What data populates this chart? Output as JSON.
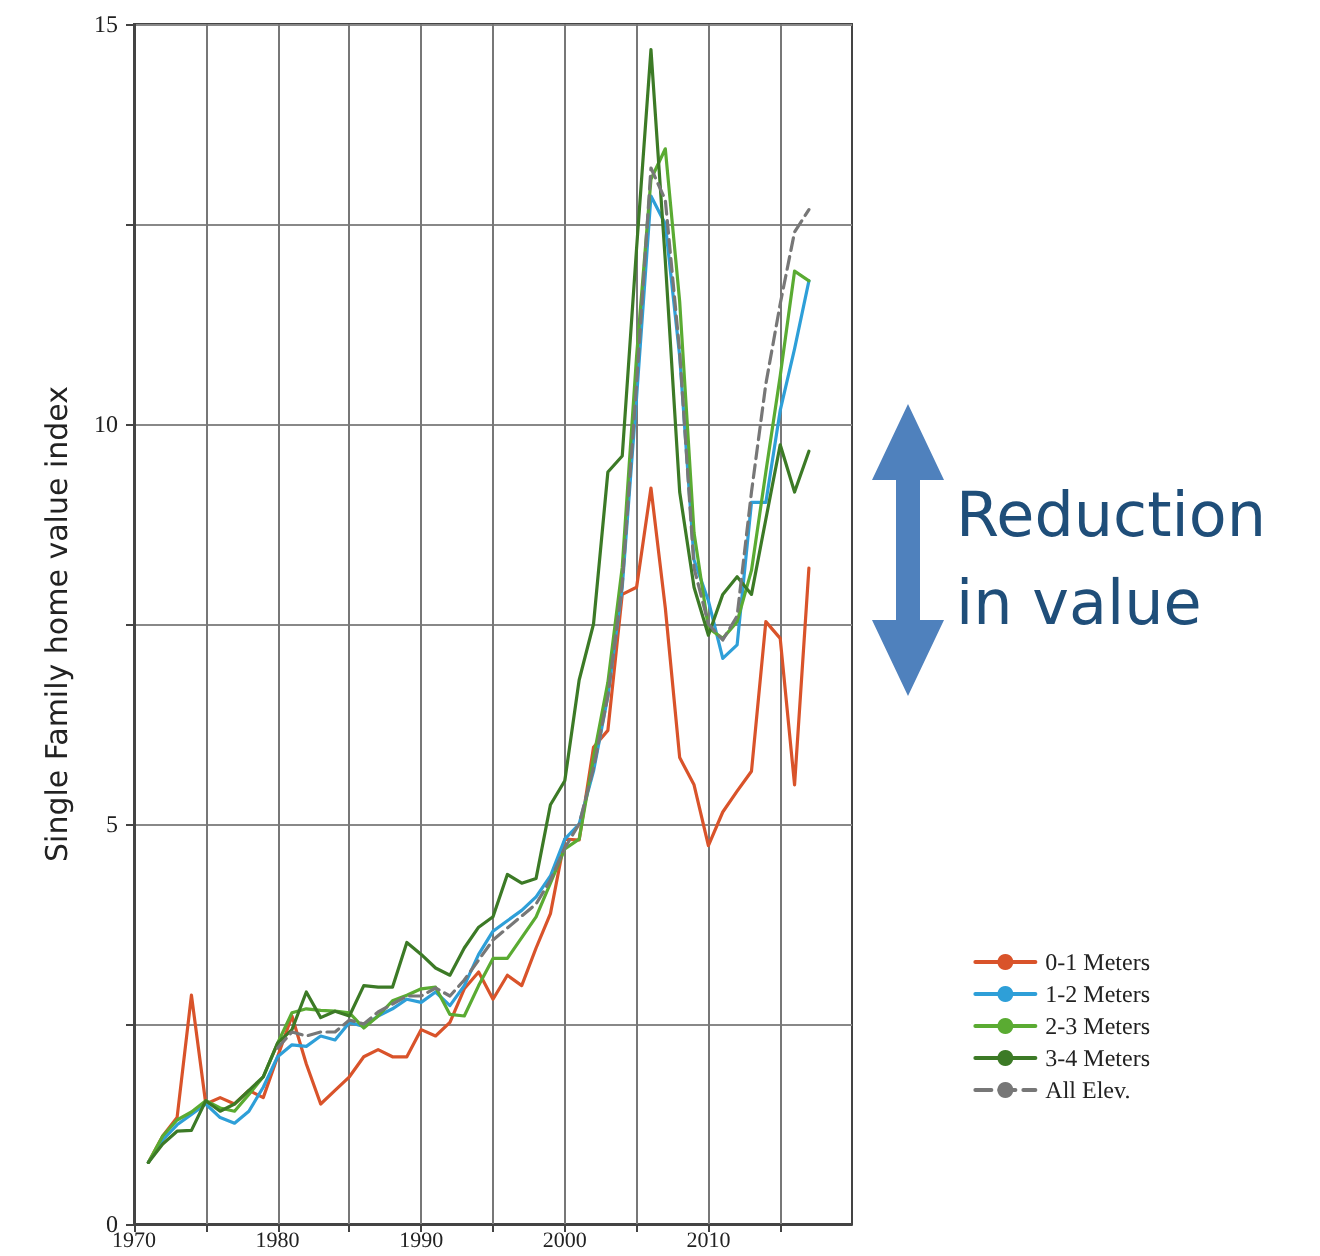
{
  "chart_data": {
    "type": "line",
    "ylabel": "Single Family home value index",
    "x": [
      1971,
      1972,
      1973,
      1974,
      1975,
      1976,
      1977,
      1978,
      1979,
      1980,
      1981,
      1982,
      1983,
      1984,
      1985,
      1986,
      1987,
      1988,
      1989,
      1990,
      1991,
      1992,
      1993,
      1994,
      1995,
      1996,
      1997,
      1998,
      1999,
      2000,
      2001,
      2002,
      2003,
      2004,
      2005,
      2006,
      2007,
      2008,
      2009,
      2010,
      2011,
      2012,
      2013,
      2014,
      2015,
      2016,
      2017
    ],
    "series": [
      {
        "name": "0-1 Meters",
        "color": "#d9532a",
        "values": [
          0.77,
          1.1,
          1.33,
          2.86,
          1.5,
          1.58,
          1.5,
          1.67,
          1.58,
          2.09,
          2.6,
          2.0,
          1.5,
          1.67,
          1.84,
          2.09,
          2.18,
          2.09,
          2.09,
          2.43,
          2.35,
          2.52,
          2.94,
          3.15,
          2.81,
          3.11,
          2.98,
          3.45,
          3.88,
          4.81,
          4.8,
          5.96,
          6.17,
          7.87,
          7.96,
          9.2,
          7.7,
          5.83,
          5.49,
          4.73,
          5.15,
          5.41,
          5.66,
          7.53,
          7.32,
          5.49,
          8.2
        ]
      },
      {
        "name": "1-2 Meters",
        "color": "#2e9fd8",
        "values": [
          0.77,
          1.05,
          1.24,
          1.37,
          1.5,
          1.33,
          1.26,
          1.41,
          1.71,
          2.09,
          2.24,
          2.22,
          2.35,
          2.3,
          2.52,
          2.47,
          2.6,
          2.69,
          2.81,
          2.77,
          2.9,
          2.73,
          2.98,
          3.37,
          3.66,
          3.79,
          3.92,
          4.09,
          4.35,
          4.81,
          5.0,
          5.66,
          6.6,
          7.96,
          10.34,
          12.85,
          12.5,
          10.85,
          8.3,
          7.79,
          7.07,
          7.24,
          9.02,
          9.02,
          10.17,
          10.94,
          11.79
        ]
      },
      {
        "name": "2-3 Meters",
        "color": "#5aab32",
        "values": [
          0.77,
          1.1,
          1.3,
          1.4,
          1.54,
          1.45,
          1.41,
          1.62,
          1.84,
          2.26,
          2.64,
          2.69,
          2.67,
          2.66,
          2.64,
          2.45,
          2.6,
          2.79,
          2.86,
          2.94,
          2.96,
          2.62,
          2.6,
          2.98,
          3.32,
          3.32,
          3.58,
          3.84,
          4.26,
          4.69,
          4.81,
          5.83,
          6.77,
          8.21,
          10.85,
          13.06,
          13.44,
          11.53,
          8.64,
          7.45,
          7.32,
          7.53,
          8.17,
          9.4,
          10.6,
          11.91,
          11.79
        ]
      },
      {
        "name": "3-4 Meters",
        "color": "#3c7a26",
        "values": [
          0.77,
          1.0,
          1.16,
          1.17,
          1.54,
          1.41,
          1.5,
          1.67,
          1.84,
          2.26,
          2.43,
          2.9,
          2.58,
          2.66,
          2.6,
          2.98,
          2.96,
          2.96,
          3.52,
          3.37,
          3.2,
          3.11,
          3.45,
          3.71,
          3.84,
          4.37,
          4.26,
          4.32,
          5.24,
          5.54,
          6.8,
          7.5,
          9.4,
          9.6,
          12.2,
          14.68,
          12.04,
          9.15,
          7.96,
          7.36,
          7.87,
          8.09,
          7.87,
          8.81,
          9.74,
          9.15,
          9.66
        ]
      },
      {
        "name": "All Elev.",
        "color": "#777777",
        "line_style": "dashed",
        "values": [
          null,
          null,
          null,
          null,
          null,
          null,
          null,
          null,
          null,
          2.2,
          2.4,
          2.35,
          2.4,
          2.4,
          2.55,
          2.5,
          2.65,
          2.75,
          2.85,
          2.85,
          2.95,
          2.85,
          3.05,
          3.3,
          3.55,
          3.7,
          3.85,
          4.0,
          4.3,
          4.7,
          5.0,
          5.7,
          6.6,
          8.0,
          10.5,
          13.2,
          12.8,
          10.9,
          8.2,
          7.5,
          7.3,
          7.6,
          9.15,
          10.5,
          11.5,
          12.4,
          12.68
        ]
      }
    ],
    "xlim": [
      1970,
      2020
    ],
    "xticks": [
      1970,
      {
        "value": 1975,
        "label": null
      },
      1980,
      {
        "value": 1985,
        "label": null
      },
      1990,
      {
        "value": 1995,
        "label": null
      },
      2000,
      {
        "value": 2005,
        "label": null
      },
      2010,
      {
        "value": 2015,
        "label": null
      }
    ],
    "ylim": [
      0,
      15
    ],
    "yticks": [
      0,
      {
        "value": 2.5,
        "label": null
      },
      5,
      {
        "value": 7.5,
        "label": null
      },
      10,
      {
        "value": 12.5,
        "label": null
      },
      15
    ],
    "grid": true,
    "legend": "bottom right",
    "marker": "none",
    "line_style": "solid",
    "annotations": [
      "Reduction in value"
    ]
  }
}
